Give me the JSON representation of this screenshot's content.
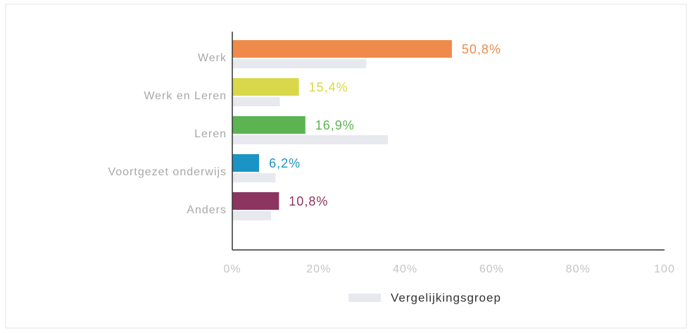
{
  "chart_data": {
    "type": "hbar",
    "categories": [
      "Werk",
      "Werk en Leren",
      "Leren",
      "Voortgezet onderwijs",
      "Anders"
    ],
    "series": [
      {
        "colors": [
          "#f08a4b",
          "#d9d84a",
          "#5cb352",
          "#1b93c4",
          "#8b3560"
        ],
        "values": [
          50.8,
          15.4,
          16.9,
          6.2,
          10.8
        ],
        "value_labels": [
          "50,8%",
          "15,4%",
          "16,9%",
          "6,2%",
          "10,8%"
        ]
      },
      {
        "name": "Vergelijkingsgroep",
        "color": "#e7e9ef",
        "values": [
          31,
          11,
          36,
          10,
          9
        ]
      }
    ],
    "xlim": [
      0,
      100
    ],
    "xticks": [
      {
        "value": 0,
        "label": "0%"
      },
      {
        "value": 20,
        "label": "20%"
      },
      {
        "value": 40,
        "label": "40%"
      },
      {
        "value": 60,
        "label": "60%"
      },
      {
        "value": 80,
        "label": "80%"
      },
      100
    ]
  }
}
